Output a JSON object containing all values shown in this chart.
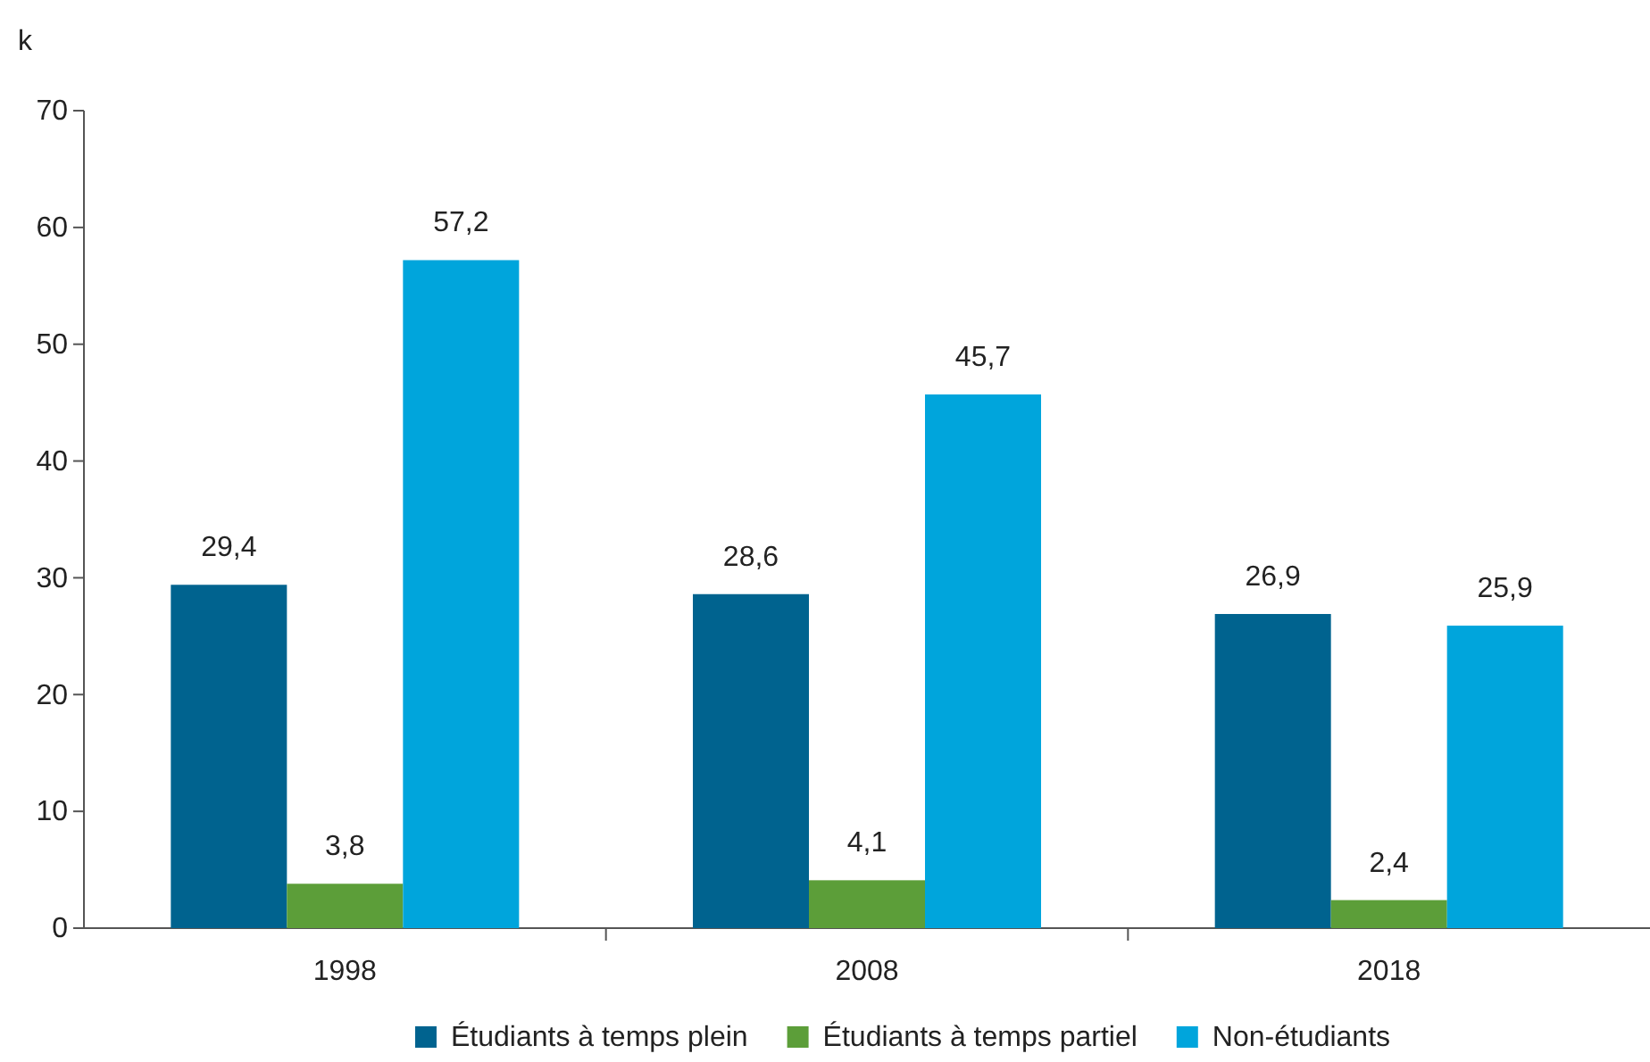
{
  "chart_data": {
    "type": "bar",
    "ylabel": "k",
    "categories": [
      "1998",
      "2008",
      "2018"
    ],
    "series": [
      {
        "name": "Étudiants à temps plein",
        "color": "#00638f",
        "values": [
          29.4,
          28.6,
          26.9
        ],
        "value_labels": [
          "29,4",
          "28,6",
          "26,9"
        ]
      },
      {
        "name": "Étudiants à temps partiel",
        "color": "#5c9e39",
        "values": [
          3.8,
          4.1,
          2.4
        ],
        "value_labels": [
          "3,8",
          "4,1",
          "2,4"
        ]
      },
      {
        "name": "Non-étudiants",
        "color": "#00a5dc",
        "values": [
          57.2,
          45.7,
          25.9
        ],
        "value_labels": [
          "57,2",
          "45,7",
          "25,9"
        ]
      }
    ],
    "ylim": [
      0,
      70
    ],
    "yticks": [
      0,
      10,
      20,
      30,
      40,
      50,
      60,
      70
    ],
    "grid": false,
    "legend": "bottom"
  }
}
